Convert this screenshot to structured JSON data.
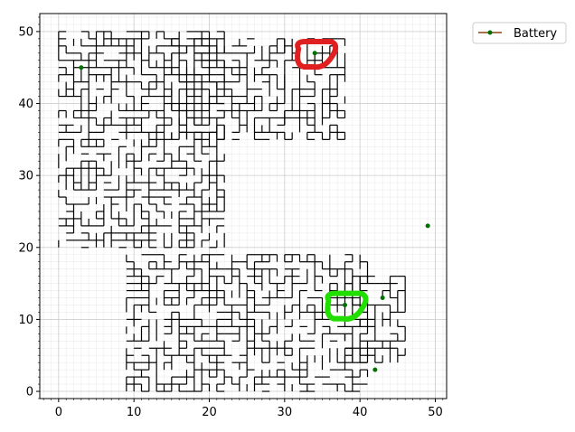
{
  "chart_data": {
    "type": "line",
    "xlim": [
      -2.5,
      51.5
    ],
    "ylim": [
      -1.0,
      52.5
    ],
    "x_ticks": [
      0,
      10,
      20,
      30,
      40,
      50
    ],
    "y_ticks": [
      0,
      10,
      20,
      30,
      40,
      50
    ],
    "minor_step": 1,
    "grid": true,
    "legend_position": "outside-top-right",
    "series": [
      {
        "name": "Battery",
        "color": "#8B4513",
        "marker_color": "#007000",
        "points": [
          [
            3,
            45
          ],
          [
            34,
            47
          ],
          [
            38,
            12
          ],
          [
            43,
            13
          ],
          [
            42,
            3
          ],
          [
            49,
            23
          ]
        ]
      }
    ],
    "walk": {
      "color": "#000000",
      "regions": [
        {
          "xmin": 0,
          "xmax": 22,
          "ymin": 20,
          "ymax": 50
        },
        {
          "xmin": 15,
          "xmax": 30,
          "ymin": 35,
          "ymax": 49
        },
        {
          "xmin": 30,
          "xmax": 38,
          "ymin": 35,
          "ymax": 49
        },
        {
          "xmin": 9,
          "xmax": 41,
          "ymin": 0,
          "ymax": 19
        },
        {
          "xmin": 38,
          "xmax": 46,
          "ymin": 4,
          "ymax": 16
        }
      ]
    },
    "annotations": [
      {
        "shape": "loop",
        "color": "#e02020",
        "center": [
          34,
          46.6
        ]
      },
      {
        "shape": "loop",
        "color": "#22dd00",
        "center": [
          38,
          11.6
        ]
      }
    ]
  }
}
